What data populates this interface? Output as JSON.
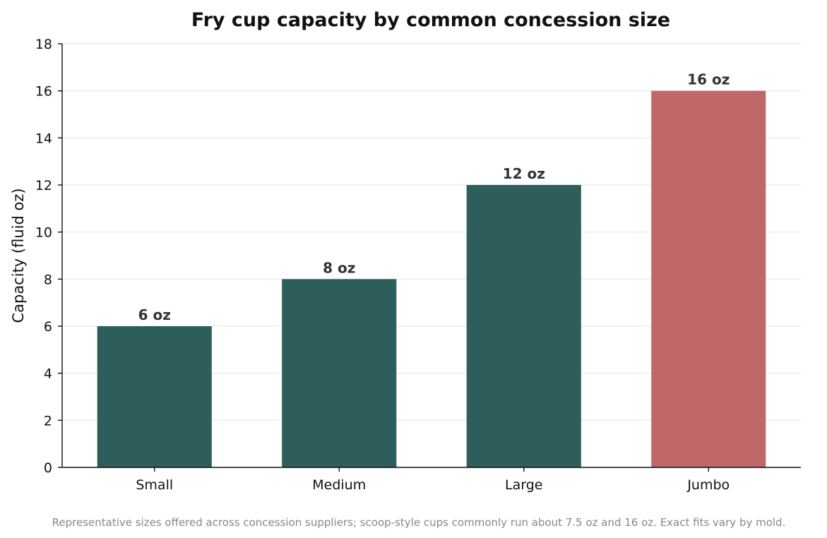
{
  "chart_data": {
    "type": "bar",
    "title": "Fry cup capacity by common concession size",
    "xlabel": "",
    "ylabel": "Capacity (fluid oz)",
    "categories": [
      "Small",
      "Medium",
      "Large",
      "Jumbo"
    ],
    "values": [
      6,
      8,
      12,
      16
    ],
    "data_labels": [
      "6 oz",
      "8 oz",
      "12 oz",
      "16 oz"
    ],
    "ylim": [
      0,
      18
    ],
    "yticks": [
      0,
      2,
      4,
      6,
      8,
      10,
      12,
      14,
      16,
      18
    ],
    "grid": true,
    "bar_colors": [
      "#2e5e5b",
      "#2e5e5b",
      "#2e5e5b",
      "#c0676a"
    ]
  },
  "footnote": "Representative sizes offered across concession suppliers; scoop-style cups commonly run about 7.5 oz and 16 oz. Exact fits vary by mold."
}
